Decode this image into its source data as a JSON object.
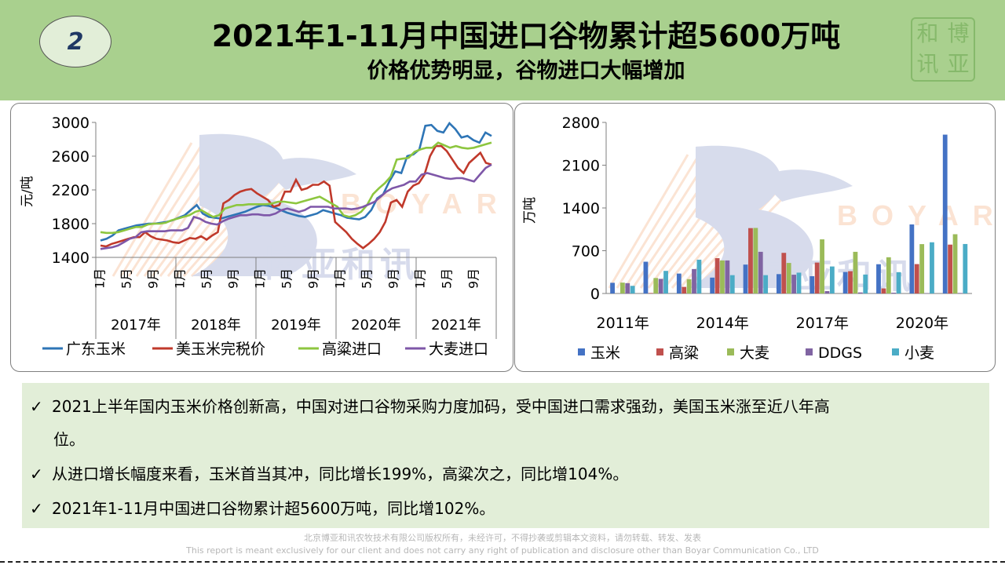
{
  "header": {
    "page_number": "2",
    "title": "2021年1-11月中国进口谷物累计超5600万吨",
    "subtitle": "价格优势明显，谷物进口大幅增加",
    "seal_chars": [
      "和",
      "博",
      "讯",
      "亚"
    ]
  },
  "watermark": {
    "cn": "博亚和讯",
    "en": "BOYAR"
  },
  "chart_data": [
    {
      "type": "line",
      "ylabel": "元/吨",
      "ylim": [
        1400,
        3000
      ],
      "yticks": [
        "3000",
        "2600",
        "2200",
        "1800",
        "1400"
      ],
      "month_ticks": [
        "1月",
        "5月",
        "9月"
      ],
      "years": [
        "2017年",
        "2018年",
        "2019年",
        "2020年",
        "2021年"
      ],
      "legend": [
        "广东玉米",
        "美玉米完税价",
        "高粱进口",
        "大麦进口"
      ],
      "colors": [
        "#2e75b6",
        "#c0392b",
        "#8dc63f",
        "#7e57a8"
      ],
      "series": [
        {
          "name": "广东玉米",
          "values": [
            1600,
            1620,
            1660,
            1720,
            1740,
            1760,
            1780,
            1790,
            1800,
            1800,
            1810,
            1820,
            1840,
            1870,
            1900,
            1960,
            2020,
            1920,
            1880,
            1870,
            1860,
            1880,
            1900,
            1920,
            1940,
            1970,
            2000,
            2020,
            2010,
            1990,
            1960,
            1930,
            1910,
            1890,
            1880,
            1900,
            1920,
            1960,
            1940,
            1920,
            1900,
            1870,
            1860,
            1850,
            1880,
            1960,
            2100,
            2150,
            2300,
            2420,
            2400,
            2600,
            2620,
            2680,
            2960,
            2970,
            2900,
            2880,
            2990,
            2920,
            2820,
            2840,
            2790,
            2760,
            2880,
            2840
          ]
        },
        {
          "name": "美玉米完税价",
          "values": [
            1540,
            1530,
            1560,
            1580,
            1600,
            1620,
            1640,
            1640,
            1700,
            1650,
            1620,
            1610,
            1600,
            1580,
            1570,
            1600,
            1630,
            1620,
            1650,
            1610,
            1660,
            1700,
            2040,
            2080,
            2140,
            2180,
            2200,
            2210,
            2160,
            2120,
            2080,
            2000,
            2020,
            2180,
            2180,
            2320,
            2200,
            2220,
            2260,
            2260,
            2300,
            2250,
            1820,
            1760,
            1700,
            1620,
            1560,
            1510,
            1560,
            1620,
            1700,
            1820,
            2050,
            2080,
            2000,
            2180,
            2250,
            2280,
            2380,
            2600,
            2720,
            2720,
            2660,
            2560,
            2460,
            2400,
            2520,
            2580,
            2640,
            2520,
            2500
          ]
        },
        {
          "name": "高粱进口",
          "values": [
            1700,
            1690,
            1690,
            1700,
            1720,
            1740,
            1760,
            1760,
            1790,
            1800,
            1800,
            1810,
            1840,
            1860,
            1880,
            1900,
            1940,
            1960,
            1920,
            1880,
            1900,
            1980,
            2000,
            2020,
            2020,
            2030,
            2030,
            2030,
            2030,
            2040,
            2060,
            2060,
            2050,
            2040,
            2060,
            2080,
            2100,
            2120,
            2080,
            2040,
            2000,
            1900,
            1880,
            1900,
            1940,
            2020,
            2150,
            2220,
            2280,
            2360,
            2560,
            2570,
            2580,
            2650,
            2680,
            2700,
            2700,
            2760,
            2730,
            2700,
            2720,
            2700,
            2690,
            2700,
            2720,
            2740,
            2760
          ]
        },
        {
          "name": "大麦进口",
          "values": [
            1500,
            1510,
            1520,
            1540,
            1580,
            1620,
            1640,
            1700,
            1710,
            1710,
            1710,
            1710,
            1720,
            1720,
            1720,
            1750,
            1880,
            1860,
            1820,
            1800,
            1790,
            1830,
            1860,
            1880,
            1900,
            1900,
            1910,
            1910,
            1900,
            1900,
            1920,
            1960,
            1980,
            1960,
            1940,
            1960,
            2000,
            2000,
            2000,
            2000,
            1980,
            1980,
            1980,
            1970,
            1980,
            2000,
            2030,
            2060,
            2120,
            2180,
            2220,
            2240,
            2260,
            2300,
            2300,
            2380,
            2400,
            2380,
            2360,
            2340,
            2330,
            2340,
            2340,
            2320,
            2300,
            2380,
            2460,
            2500
          ]
        }
      ]
    },
    {
      "type": "bar",
      "ylabel": "万吨",
      "ylim": [
        0,
        2800
      ],
      "yticks": [
        "2800",
        "2100",
        "1400",
        "700",
        "0"
      ],
      "categories": [
        "2011年",
        "2012年",
        "2013年",
        "2014年",
        "2015年",
        "2016年",
        "2017年",
        "2018年",
        "2019年",
        "2020年",
        "2021年"
      ],
      "xtick_labels": [
        "2011年",
        "2014年",
        "2017年",
        "2020年"
      ],
      "colors": [
        "#4472c4",
        "#c0504d",
        "#9bbb59",
        "#8064a2",
        "#4bacc6"
      ],
      "series": [
        {
          "name": "玉米",
          "values": [
            175,
            520,
            326,
            260,
            473,
            317,
            283,
            352,
            479,
            1130,
            2600
          ]
        },
        {
          "name": "高粱",
          "values": [
            0,
            8,
            108,
            578,
            1070,
            665,
            506,
            365,
            83,
            481,
            800
          ]
        },
        {
          "name": "大麦",
          "values": [
            178,
            253,
            234,
            541,
            1073,
            500,
            886,
            682,
            593,
            808,
            970
          ]
        },
        {
          "name": "DDGS",
          "values": [
            169,
            239,
            400,
            541,
            682,
            307,
            39,
            17,
            13,
            5,
            8
          ]
        },
        {
          "name": "小麦",
          "values": [
            125,
            370,
            553,
            300,
            300,
            341,
            442,
            310,
            349,
            838,
            810
          ]
        }
      ]
    }
  ],
  "bullets": [
    {
      "text": "2021上半年国内玉米价格创新高，中国对进口谷物采购力度加码，受中国进口需求强劲，美国玉米涨至近八年高",
      "cont": "位。"
    },
    {
      "text": "从进口增长幅度来看，玉米首当其冲，同比增长199%，高粱次之，同比增104%。"
    },
    {
      "text": "2021年1-11月中国进口谷物累计超5600万吨，同比增102%。"
    }
  ],
  "bullet_mark": "✓",
  "footer": {
    "line1": "北京博亚和讯农牧技术有限公司版权所有，未经许可，不得抄袭或剪辑本文资料，请勿转载、转发、发表",
    "line2": "This report is meant exclusively for our client and does not carry any right of publication and disclosure other than Boyar Communication Co., LTD"
  }
}
